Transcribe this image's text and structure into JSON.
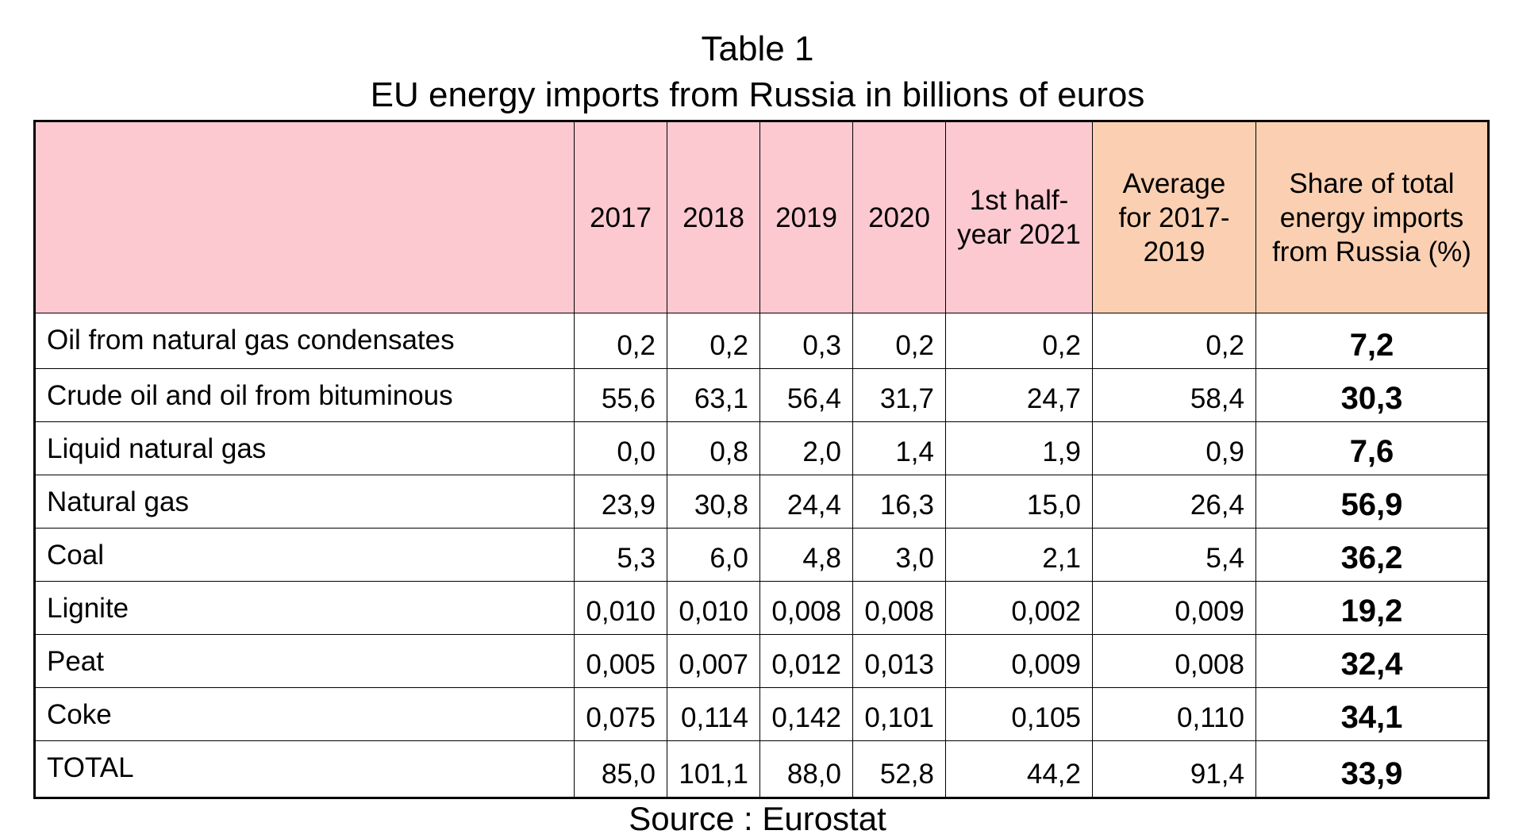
{
  "title": "Table 1",
  "subtitle": "EU energy imports from Russia in billions of euros",
  "columns": [
    "",
    "2017",
    "2018",
    "2019",
    "2020",
    "1st half-year 2021",
    "Average for 2017-2019",
    "Share of total energy imports from Russia (%)"
  ],
  "rows": [
    {
      "label": "Oil from natural gas condensates",
      "values": [
        "0,2",
        "0,2",
        "0,3",
        "0,2",
        "0,2",
        "0,2"
      ],
      "share": "7,2"
    },
    {
      "label": "Crude oil and oil from bituminous",
      "values": [
        "55,6",
        "63,1",
        "56,4",
        "31,7",
        "24,7",
        "58,4"
      ],
      "share": "30,3"
    },
    {
      "label": "Liquid natural gas",
      "values": [
        "0,0",
        "0,8",
        "2,0",
        "1,4",
        "1,9",
        "0,9"
      ],
      "share": "7,6"
    },
    {
      "label": "Natural gas",
      "values": [
        "23,9",
        "30,8",
        "24,4",
        "16,3",
        "15,0",
        "26,4"
      ],
      "share": "56,9"
    },
    {
      "label": "Coal",
      "values": [
        "5,3",
        "6,0",
        "4,8",
        "3,0",
        "2,1",
        "5,4"
      ],
      "share": "36,2"
    },
    {
      "label": "Lignite",
      "values": [
        "0,010",
        "0,010",
        "0,008",
        "0,008",
        "0,002",
        "0,009"
      ],
      "share": "19,2"
    },
    {
      "label": "Peat",
      "values": [
        "0,005",
        "0,007",
        "0,012",
        "0,013",
        "0,009",
        "0,008"
      ],
      "share": "32,4"
    },
    {
      "label": "Coke",
      "values": [
        "0,075",
        "0,114",
        "0,142",
        "0,101",
        "0,105",
        "0,110"
      ],
      "share": "34,1"
    },
    {
      "label": "TOTAL",
      "values": [
        "85,0",
        "101,1",
        "88,0",
        "52,8",
        "44,2",
        "91,4"
      ],
      "share": "33,9"
    }
  ],
  "source": "Source : Eurostat",
  "colors": {
    "header_pink": "#fcc9d1",
    "header_peach": "#fbd0b2"
  }
}
